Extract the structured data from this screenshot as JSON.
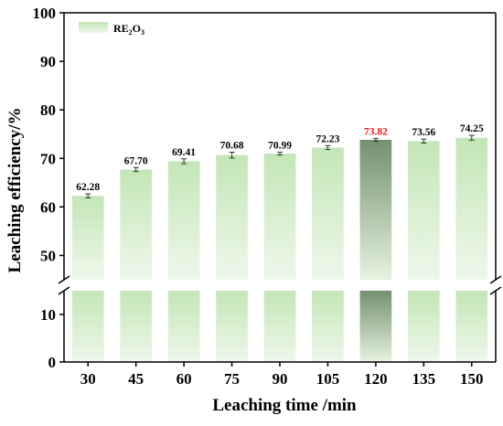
{
  "chart_data": {
    "type": "bar",
    "categories": [
      "30",
      "45",
      "60",
      "75",
      "90",
      "105",
      "120",
      "135",
      "150"
    ],
    "series": [
      {
        "name": "RE2O3",
        "values": [
          62.28,
          67.7,
          69.41,
          70.68,
          70.99,
          72.23,
          73.82,
          73.56,
          74.25
        ],
        "errors": [
          0.4,
          0.4,
          0.5,
          0.6,
          0.3,
          0.4,
          0.3,
          0.4,
          0.5
        ]
      }
    ],
    "data_labels": [
      "62.28",
      "67.70",
      "69.41",
      "70.68",
      "70.99",
      "72.23",
      "73.82",
      "73.56",
      "74.25"
    ],
    "highlight_index": 6,
    "highlight_label_color": "#e8171b",
    "bar_color_light": "#e6f4e0",
    "bar_color_mid": "#c3e6b7",
    "bar_color_highlight": "#7e9a7a",
    "xlabel": "Leaching time /min",
    "ylabel": "Leaching efficiency/%",
    "legend": {
      "label_main": "RE",
      "label_sub": "2",
      "label_main2": "O",
      "label_sub2": "3",
      "placement": "top-left"
    },
    "axis_break": {
      "lower": 15,
      "upper": 45
    },
    "ylim_lower": [
      0,
      15
    ],
    "ylim_upper": [
      45,
      100
    ],
    "yticks_lower": [
      "0",
      "10"
    ],
    "yticks_upper": [
      "50",
      "60",
      "70",
      "80",
      "90",
      "100"
    ],
    "grid": false
  }
}
